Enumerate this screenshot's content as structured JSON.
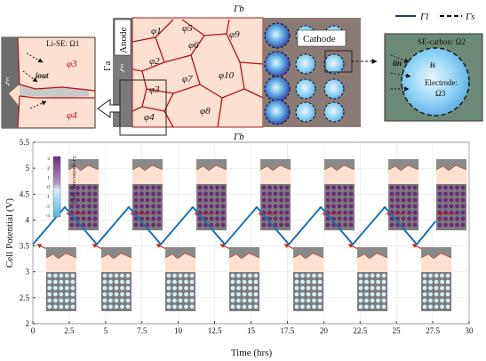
{
  "schematic": {
    "top_boundary_label": "Γb",
    "bottom_boundary_label": "Γb",
    "anode_label": "Anode",
    "anode_interface_label": "Γa",
    "cathode_label": "Cathode",
    "grains": [
      "φ1",
      "φ2",
      "φ3",
      "φ4",
      "φ5",
      "φ6",
      "φ7",
      "φ8",
      "φ9",
      "φ10"
    ],
    "legend": [
      {
        "label": "Γl",
        "style": "solid"
      },
      {
        "label": "Γs",
        "style": "dashed"
      }
    ],
    "left_inset": {
      "title": "Li-SE: Ω1",
      "xi_label": "ξ",
      "phi_top": "φ3",
      "phi_bottom": "φ4",
      "current_label": "iout"
    },
    "right_inset": {
      "title": "SE-carbon: Ω2",
      "electrode_label": "Electrode:",
      "electrode_domain": "Ω3",
      "current_in_label": "iin",
      "current_s_label": "is"
    },
    "anode_xi_label": "ξ"
  },
  "chart_data": {
    "type": "line",
    "title": "",
    "xlabel": "Time (hrs)",
    "ylabel": "Cell Potential (V)",
    "xlim": [
      0,
      30
    ],
    "ylim": [
      2,
      5.5
    ],
    "xticks": [
      "0",
      "2.5",
      "5",
      "7.5",
      "10",
      "12.5",
      "15",
      "17.5",
      "20",
      "22.5",
      "25",
      "27.5",
      "30"
    ],
    "yticks": [
      "2",
      "2.5",
      "3",
      "3.5",
      "4",
      "4.5",
      "5",
      "5.5"
    ],
    "grid": true,
    "series": [
      {
        "name": "",
        "color": "#1f6fb5",
        "x": [
          0,
          2.2,
          4.4,
          6.6,
          8.8,
          11.0,
          13.2,
          15.4,
          17.6,
          19.8,
          22.0,
          24.2,
          26.4,
          27.7
        ],
        "y": [
          3.53,
          4.25,
          3.53,
          4.25,
          3.53,
          4.25,
          3.53,
          4.25,
          3.53,
          4.25,
          3.53,
          4.25,
          3.53,
          3.98
        ]
      }
    ],
    "colorbar": {
      "label": "Li-species conc. (a.u.)",
      "ticks": [
        "3",
        "2",
        "1",
        "0",
        "-1",
        "-2",
        "-3"
      ]
    },
    "snapshots_charged_at_hours": [
      2.2,
      6.6,
      11.0,
      15.4,
      19.8,
      24.2,
      27.7
    ],
    "snapshots_discharged_at_hours": [
      0.6,
      4.4,
      8.8,
      13.2,
      17.6,
      22.0,
      26.4
    ]
  }
}
